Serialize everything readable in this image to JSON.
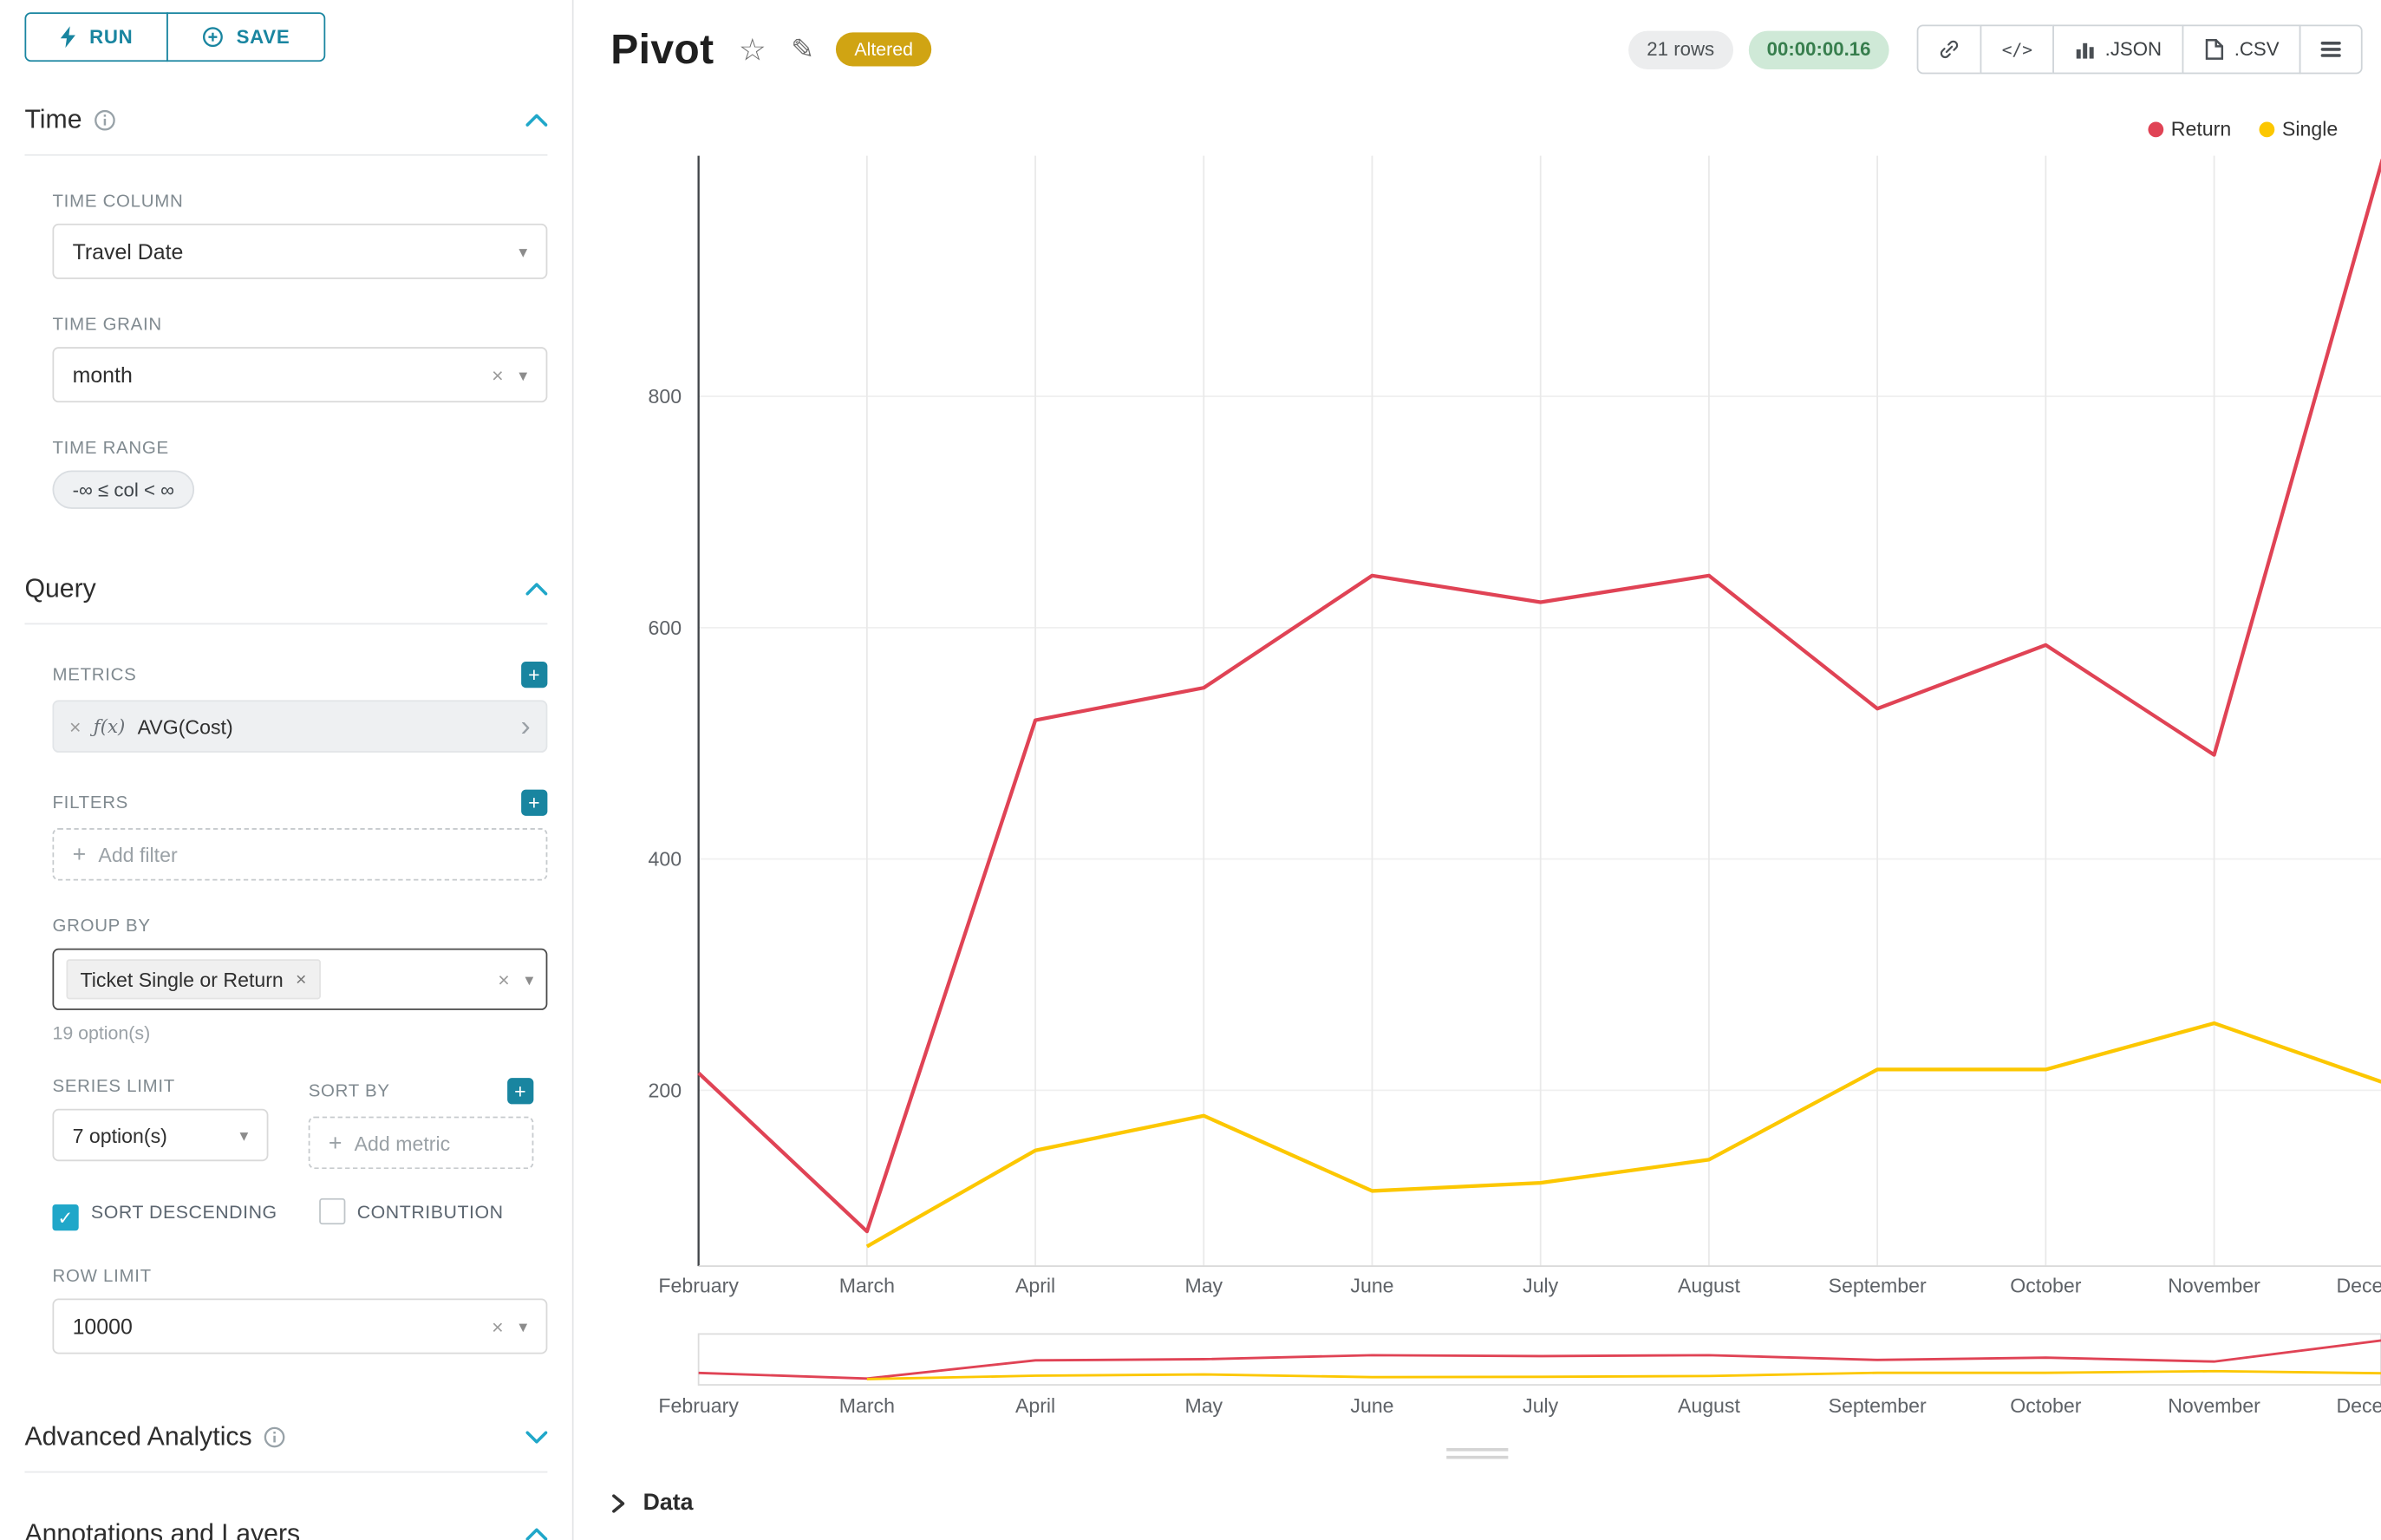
{
  "colors": {
    "primary": "#1985a0",
    "accent": "#20a7c9",
    "altered_badge_bg": "#d0a413",
    "timer_bg": "#cfe9d7",
    "timer_text": "#377e4d",
    "series_return": "#e04355",
    "series_single": "#fcc700"
  },
  "icons": {
    "close": "×",
    "caret": "▾",
    "plus": "+",
    "check": "✓",
    "chevron_right": "›",
    "star": "☆",
    "edit": "✎",
    "fx": "ƒ(x)",
    "code": "</>"
  },
  "actions": {
    "run": "RUN",
    "save": "SAVE"
  },
  "time_section": {
    "title": "Time",
    "time_column_label": "TIME COLUMN",
    "time_column_value": "Travel Date",
    "time_grain_label": "TIME GRAIN",
    "time_grain_value": "month",
    "time_range_label": "TIME RANGE",
    "time_range_value": "-∞ ≤ col < ∞"
  },
  "query_section": {
    "title": "Query",
    "metrics_label": "METRICS",
    "metric_value": "AVG(Cost)",
    "filters_label": "FILTERS",
    "add_filter_placeholder": "Add filter",
    "group_by_label": "GROUP BY",
    "group_by_token": "Ticket Single or Return",
    "group_by_hint": "19 option(s)",
    "series_limit_label": "SERIES LIMIT",
    "series_limit_value": "7 option(s)",
    "sort_by_label": "SORT BY",
    "add_metric_placeholder": "Add metric",
    "sort_descending_label": "SORT DESCENDING",
    "sort_descending_checked": true,
    "contribution_label": "CONTRIBUTION",
    "contribution_checked": false,
    "row_limit_label": "ROW LIMIT",
    "row_limit_value": "10000"
  },
  "advanced_section": {
    "title": "Advanced Analytics"
  },
  "annotations_section": {
    "title": "Annotations and Layers"
  },
  "header": {
    "title": "Pivot",
    "altered_badge": "Altered",
    "row_count": "21 rows",
    "timer": "00:00:00.16",
    "json_button": ".JSON",
    "csv_button": ".CSV"
  },
  "footer": {
    "data_label": "Data"
  },
  "chart_data": {
    "type": "line",
    "title": "",
    "xlabel": "",
    "ylabel": "",
    "x": [
      "February",
      "March",
      "April",
      "May",
      "June",
      "July",
      "August",
      "September",
      "October",
      "November",
      "December"
    ],
    "series": [
      {
        "name": "Return",
        "color": "#e04355",
        "values": [
          215,
          78,
          520,
          548,
          645,
          622,
          645,
          530,
          585,
          490,
          1005
        ]
      },
      {
        "name": "Single",
        "color": "#fcc700",
        "values": [
          null,
          65,
          148,
          178,
          113,
          120,
          140,
          218,
          218,
          258,
          207
        ]
      }
    ],
    "yticks": [
      200,
      400,
      600,
      800
    ],
    "ylim": [
      40,
      1010
    ],
    "grid": true,
    "legend_position": "top-right",
    "has_mini_range_chart": true
  }
}
